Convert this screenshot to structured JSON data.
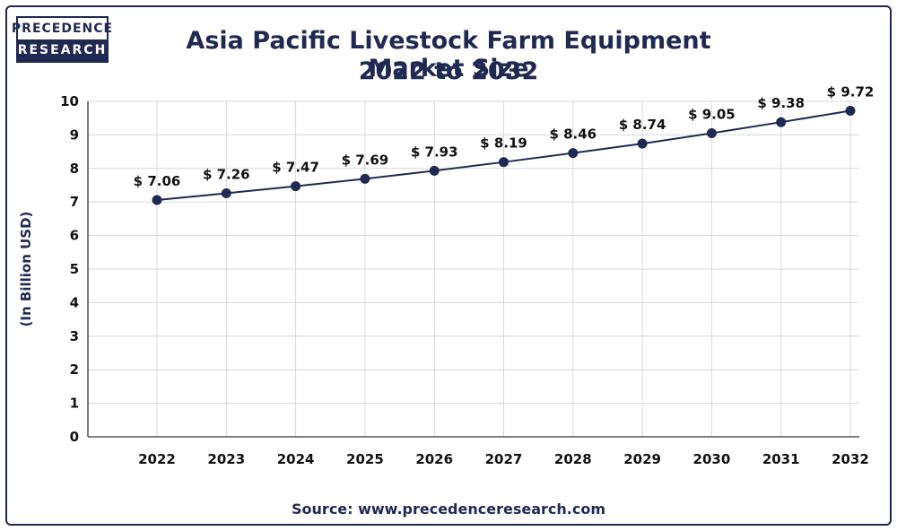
{
  "brand": {
    "line1": "PRECEDENCE",
    "line2": "RESEARCH"
  },
  "title_line1": "Asia Pacific Livestock Farm Equipment Market Size",
  "title_line2": "2022 to 2032",
  "source": "Source: www.precedenceresearch.com",
  "colors": {
    "line": "#1f2a52",
    "grid": "#d9d9d9",
    "frame": "#1f2a52"
  },
  "chart_data": {
    "type": "line",
    "title": "Asia Pacific Livestock Farm Equipment Market Size 2022 to 2032",
    "xlabel": "",
    "ylabel": "(In Billion USD)",
    "ylim": [
      0,
      10
    ],
    "yticks": [
      0,
      1,
      2,
      3,
      4,
      5,
      6,
      7,
      8,
      9,
      10
    ],
    "grid": true,
    "categories": [
      "2022",
      "2023",
      "2024",
      "2025",
      "2026",
      "2027",
      "2028",
      "2029",
      "2030",
      "2031",
      "2032"
    ],
    "values": [
      7.06,
      7.26,
      7.47,
      7.69,
      7.93,
      8.19,
      8.46,
      8.74,
      9.05,
      9.38,
      9.72
    ],
    "value_labels": [
      "$ 7.06",
      "$ 7.26",
      "$ 7.47",
      "$ 7.69",
      "$ 7.93",
      "$ 8.19",
      "$ 8.46",
      "$ 8.74",
      "$ 9.05",
      "$ 9.38",
      "$ 9.72"
    ]
  }
}
